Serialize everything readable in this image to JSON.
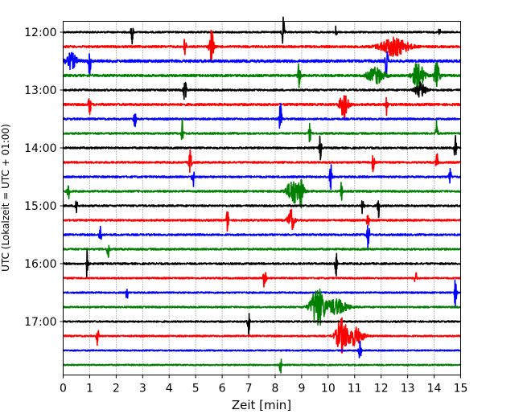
{
  "chart_data": {
    "type": "line",
    "title": "",
    "xlabel": "Zeit  [min]",
    "ylabel": "UTC (Lokalzeit = UTC + 01:00)",
    "xlim": [
      0,
      15
    ],
    "x_ticks": [
      0,
      1,
      2,
      3,
      4,
      5,
      6,
      7,
      8,
      9,
      10,
      11,
      12,
      13,
      14,
      15
    ],
    "y_tick_labels": [
      "12:00",
      "13:00",
      "14:00",
      "15:00",
      "16:00",
      "17:00"
    ],
    "grid": "vertical dotted lines at each minute",
    "trace_interval_minutes": 15,
    "trace_color_cycle": [
      "#000000",
      "#ff0000",
      "#0000ff",
      "#008000"
    ],
    "series": [
      {
        "start": "12:00",
        "color": "#000000",
        "noise": 0.3,
        "events": [
          [
            2.6,
            0.8,
            0.04
          ],
          [
            8.3,
            1.0,
            0.05
          ],
          [
            10.3,
            0.5,
            0.03
          ],
          [
            14.2,
            0.4,
            0.03
          ]
        ]
      },
      {
        "start": "12:15",
        "color": "#ff0000",
        "noise": 0.4,
        "events": [
          [
            4.6,
            0.8,
            0.04
          ],
          [
            5.6,
            1.1,
            0.08
          ],
          [
            12.5,
            0.6,
            0.5
          ]
        ]
      },
      {
        "start": "12:30",
        "color": "#0000ff",
        "noise": 0.5,
        "events": [
          [
            0.3,
            0.5,
            0.2
          ],
          [
            1.0,
            0.9,
            0.05
          ],
          [
            12.2,
            1.2,
            0.05
          ]
        ]
      },
      {
        "start": "12:45",
        "color": "#008000",
        "noise": 0.45,
        "events": [
          [
            8.9,
            0.9,
            0.04
          ],
          [
            11.8,
            0.5,
            0.3
          ],
          [
            13.4,
            0.9,
            0.2
          ],
          [
            14.1,
            0.9,
            0.1
          ]
        ]
      },
      {
        "start": "13:00",
        "color": "#000000",
        "noise": 0.35,
        "events": [
          [
            4.6,
            1.0,
            0.05
          ],
          [
            13.5,
            0.5,
            0.2
          ]
        ]
      },
      {
        "start": "13:15",
        "color": "#ff0000",
        "noise": 0.45,
        "events": [
          [
            1.0,
            0.9,
            0.04
          ],
          [
            10.6,
            0.9,
            0.15
          ],
          [
            12.2,
            0.8,
            0.04
          ]
        ]
      },
      {
        "start": "13:30",
        "color": "#0000ff",
        "noise": 0.35,
        "events": [
          [
            2.7,
            0.8,
            0.04
          ],
          [
            8.2,
            1.0,
            0.05
          ]
        ]
      },
      {
        "start": "13:45",
        "color": "#008000",
        "noise": 0.35,
        "events": [
          [
            4.5,
            0.9,
            0.04
          ],
          [
            9.3,
            0.6,
            0.04
          ],
          [
            14.1,
            0.9,
            0.04
          ]
        ]
      },
      {
        "start": "14:00",
        "color": "#000000",
        "noise": 0.35,
        "events": [
          [
            9.7,
            1.0,
            0.04
          ],
          [
            14.8,
            0.9,
            0.04
          ]
        ]
      },
      {
        "start": "14:15",
        "color": "#ff0000",
        "noise": 0.35,
        "events": [
          [
            4.8,
            1.0,
            0.05
          ],
          [
            11.7,
            0.7,
            0.04
          ],
          [
            14.1,
            0.7,
            0.04
          ]
        ]
      },
      {
        "start": "14:30",
        "color": "#0000ff",
        "noise": 0.35,
        "events": [
          [
            4.9,
            0.8,
            0.04
          ],
          [
            10.1,
            1.0,
            0.04
          ],
          [
            14.6,
            0.7,
            0.04
          ]
        ]
      },
      {
        "start": "14:45",
        "color": "#008000",
        "noise": 0.35,
        "events": [
          [
            0.2,
            0.6,
            0.04
          ],
          [
            8.7,
            0.8,
            0.25
          ],
          [
            9.0,
            0.9,
            0.08
          ],
          [
            10.5,
            0.6,
            0.04
          ]
        ]
      },
      {
        "start": "15:00",
        "color": "#000000",
        "noise": 0.35,
        "events": [
          [
            0.5,
            0.9,
            0.04
          ],
          [
            11.3,
            0.9,
            0.04
          ],
          [
            11.9,
            0.8,
            0.04
          ]
        ]
      },
      {
        "start": "15:15",
        "color": "#ff0000",
        "noise": 0.35,
        "events": [
          [
            6.2,
            0.8,
            0.04
          ],
          [
            8.6,
            0.7,
            0.12
          ],
          [
            11.5,
            0.6,
            0.04
          ]
        ]
      },
      {
        "start": "15:30",
        "color": "#0000ff",
        "noise": 0.35,
        "events": [
          [
            1.4,
            0.8,
            0.04
          ],
          [
            11.5,
            1.0,
            0.05
          ]
        ]
      },
      {
        "start": "15:45",
        "color": "#008000",
        "noise": 0.35,
        "events": [
          [
            1.7,
            0.8,
            0.04
          ]
        ]
      },
      {
        "start": "16:00",
        "color": "#000000",
        "noise": 0.35,
        "events": [
          [
            0.9,
            1.0,
            0.04
          ],
          [
            10.3,
            1.0,
            0.04
          ]
        ]
      },
      {
        "start": "16:15",
        "color": "#ff0000",
        "noise": 0.3,
        "events": [
          [
            7.6,
            0.9,
            0.05
          ],
          [
            13.3,
            0.6,
            0.04
          ]
        ]
      },
      {
        "start": "16:30",
        "color": "#0000ff",
        "noise": 0.3,
        "events": [
          [
            2.4,
            0.6,
            0.04
          ],
          [
            14.8,
            1.0,
            0.04
          ]
        ]
      },
      {
        "start": "16:45",
        "color": "#008000",
        "noise": 0.3,
        "events": [
          [
            9.6,
            1.3,
            0.25
          ],
          [
            10.3,
            0.5,
            0.4
          ]
        ]
      },
      {
        "start": "17:00",
        "color": "#000000",
        "noise": 0.3,
        "events": [
          [
            7.0,
            1.0,
            0.04
          ]
        ]
      },
      {
        "start": "17:15",
        "color": "#ff0000",
        "noise": 0.3,
        "events": [
          [
            1.3,
            0.7,
            0.04
          ],
          [
            10.5,
            1.1,
            0.2
          ],
          [
            11.0,
            0.6,
            0.3
          ]
        ]
      },
      {
        "start": "17:30",
        "color": "#0000ff",
        "noise": 0.25,
        "events": [
          [
            11.2,
            1.0,
            0.04
          ]
        ]
      },
      {
        "start": "17:45",
        "color": "#008000",
        "noise": 0.25,
        "events": [
          [
            8.2,
            0.6,
            0.04
          ]
        ]
      }
    ]
  }
}
